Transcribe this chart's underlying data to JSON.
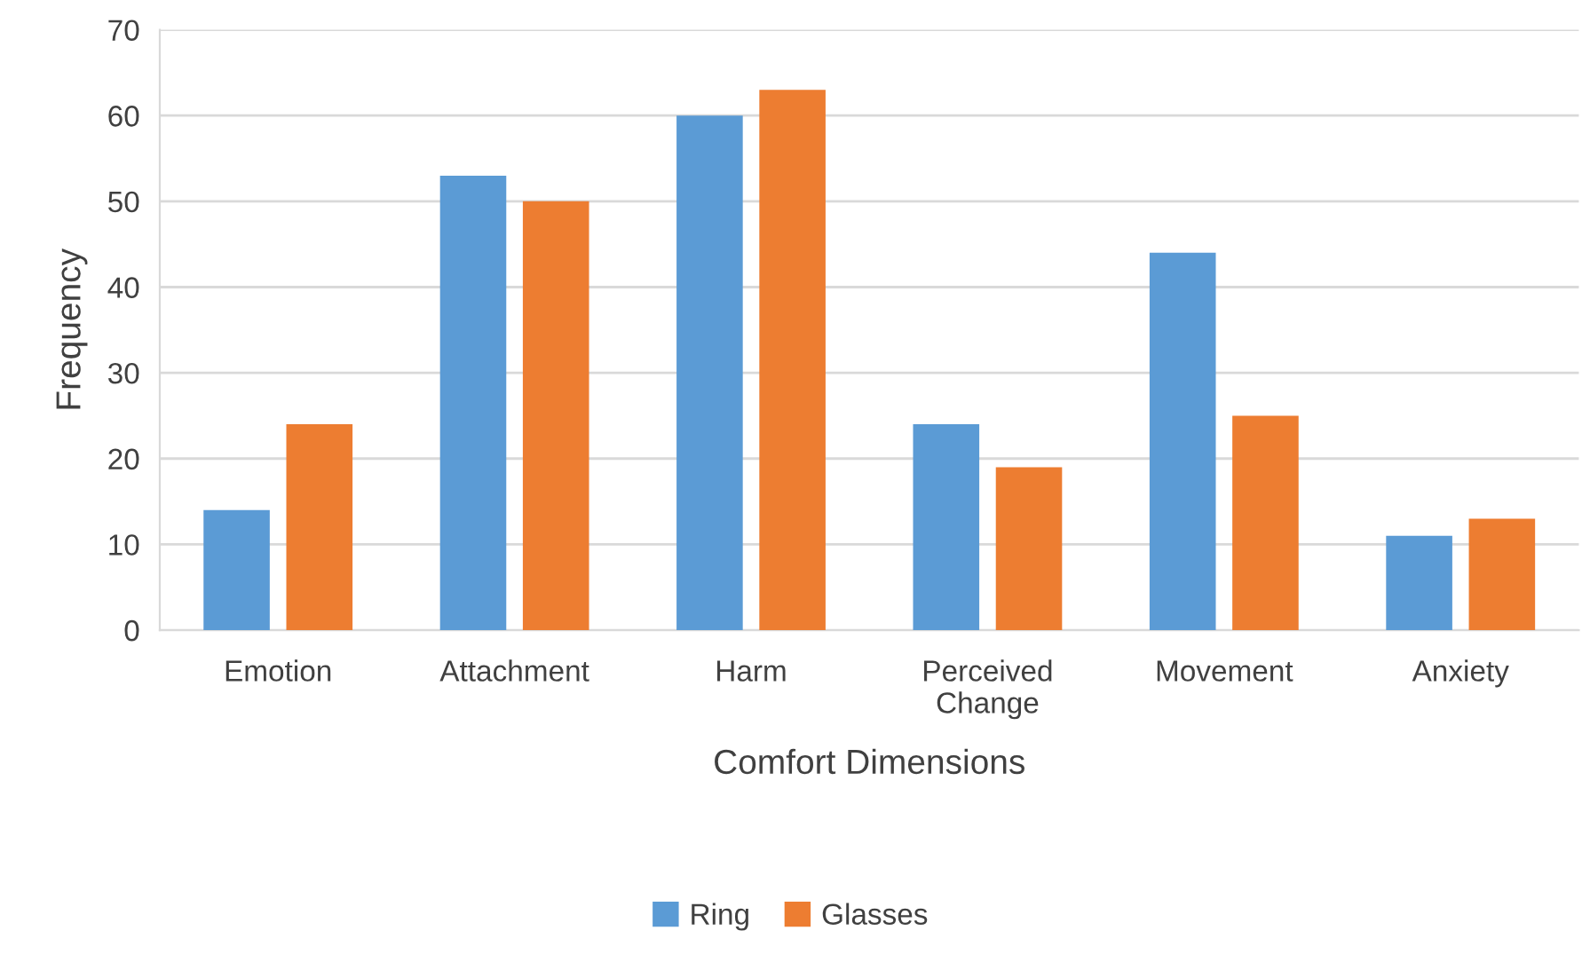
{
  "chart_data": {
    "type": "bar",
    "xlabel": "Comfort Dimensions",
    "ylabel": "Frequency",
    "categories": [
      "Emotion",
      "Attachment",
      "Harm",
      "Perceived Change",
      "Movement",
      "Anxiety"
    ],
    "series": [
      {
        "name": "Ring",
        "color": "#5b9bd5",
        "values": [
          14,
          53,
          60,
          24,
          44,
          11
        ]
      },
      {
        "name": "Glasses",
        "color": "#ed7d31",
        "values": [
          24,
          50,
          63,
          19,
          25,
          13
        ]
      }
    ],
    "ylim": [
      0,
      70
    ],
    "yticks": [
      0,
      10,
      20,
      30,
      40,
      50,
      60,
      70
    ],
    "grid": "y",
    "legend": "bottom"
  }
}
